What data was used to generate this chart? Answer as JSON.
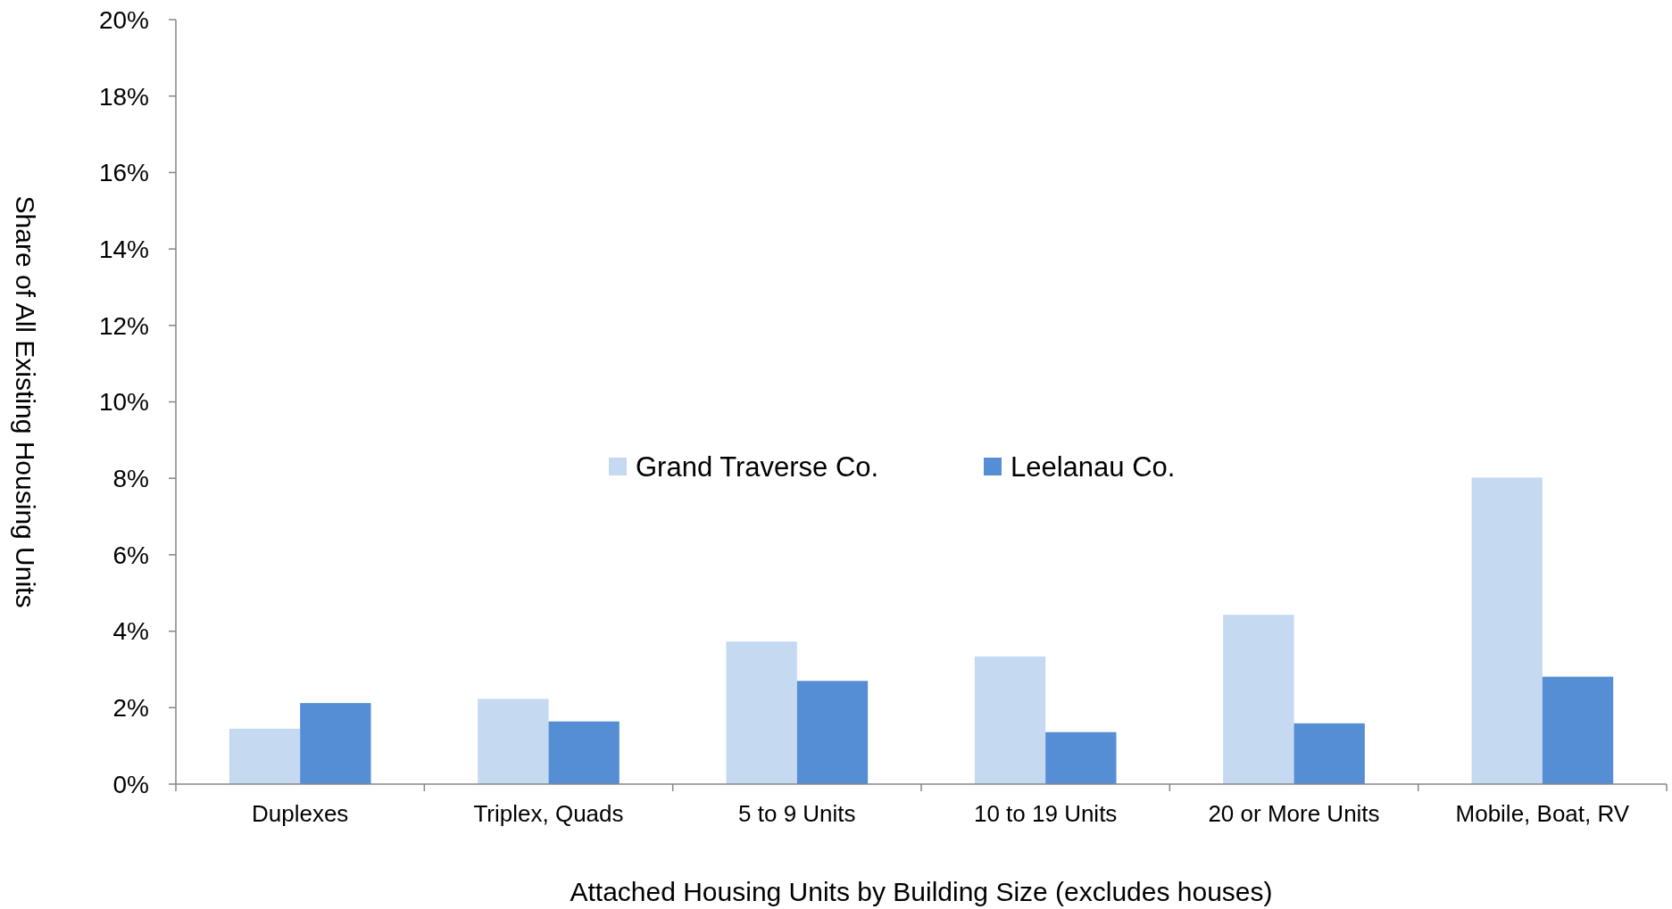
{
  "chart_data": {
    "type": "bar",
    "xlabel": "Attached Housing Units by Building Size (excludes houses)",
    "ylabel": "Share of All Existing Housing Units",
    "categories": [
      "Duplexes",
      "Triplex, Quads",
      "5 to 9 Units",
      "10 to 19 Units",
      "20 or More Units",
      "Mobile, Boat, RV"
    ],
    "series": [
      {
        "name": "Grand Traverse Co.",
        "color": "#c5d9f1",
        "values": [
          1.45,
          2.23,
          3.73,
          3.34,
          4.43,
          8.02
        ]
      },
      {
        "name": "Leelanau Co.",
        "color": "#558ed5",
        "values": [
          2.12,
          1.64,
          2.7,
          1.36,
          1.59,
          2.81
        ]
      }
    ],
    "ylim": [
      0,
      20
    ],
    "yticks": [
      {
        "value": 0,
        "label": "0%"
      },
      {
        "value": 2,
        "label": "2%"
      },
      {
        "value": 4,
        "label": "4%"
      },
      {
        "value": 6,
        "label": "6%"
      },
      {
        "value": 8,
        "label": "8%"
      },
      {
        "value": 10,
        "label": "10%"
      },
      {
        "value": 12,
        "label": "12%"
      },
      {
        "value": 14,
        "label": "14%"
      },
      {
        "value": 16,
        "label": "16%"
      },
      {
        "value": 18,
        "label": "18%"
      },
      {
        "value": 20,
        "label": "20%"
      }
    ],
    "grid": false,
    "legend": "center"
  }
}
